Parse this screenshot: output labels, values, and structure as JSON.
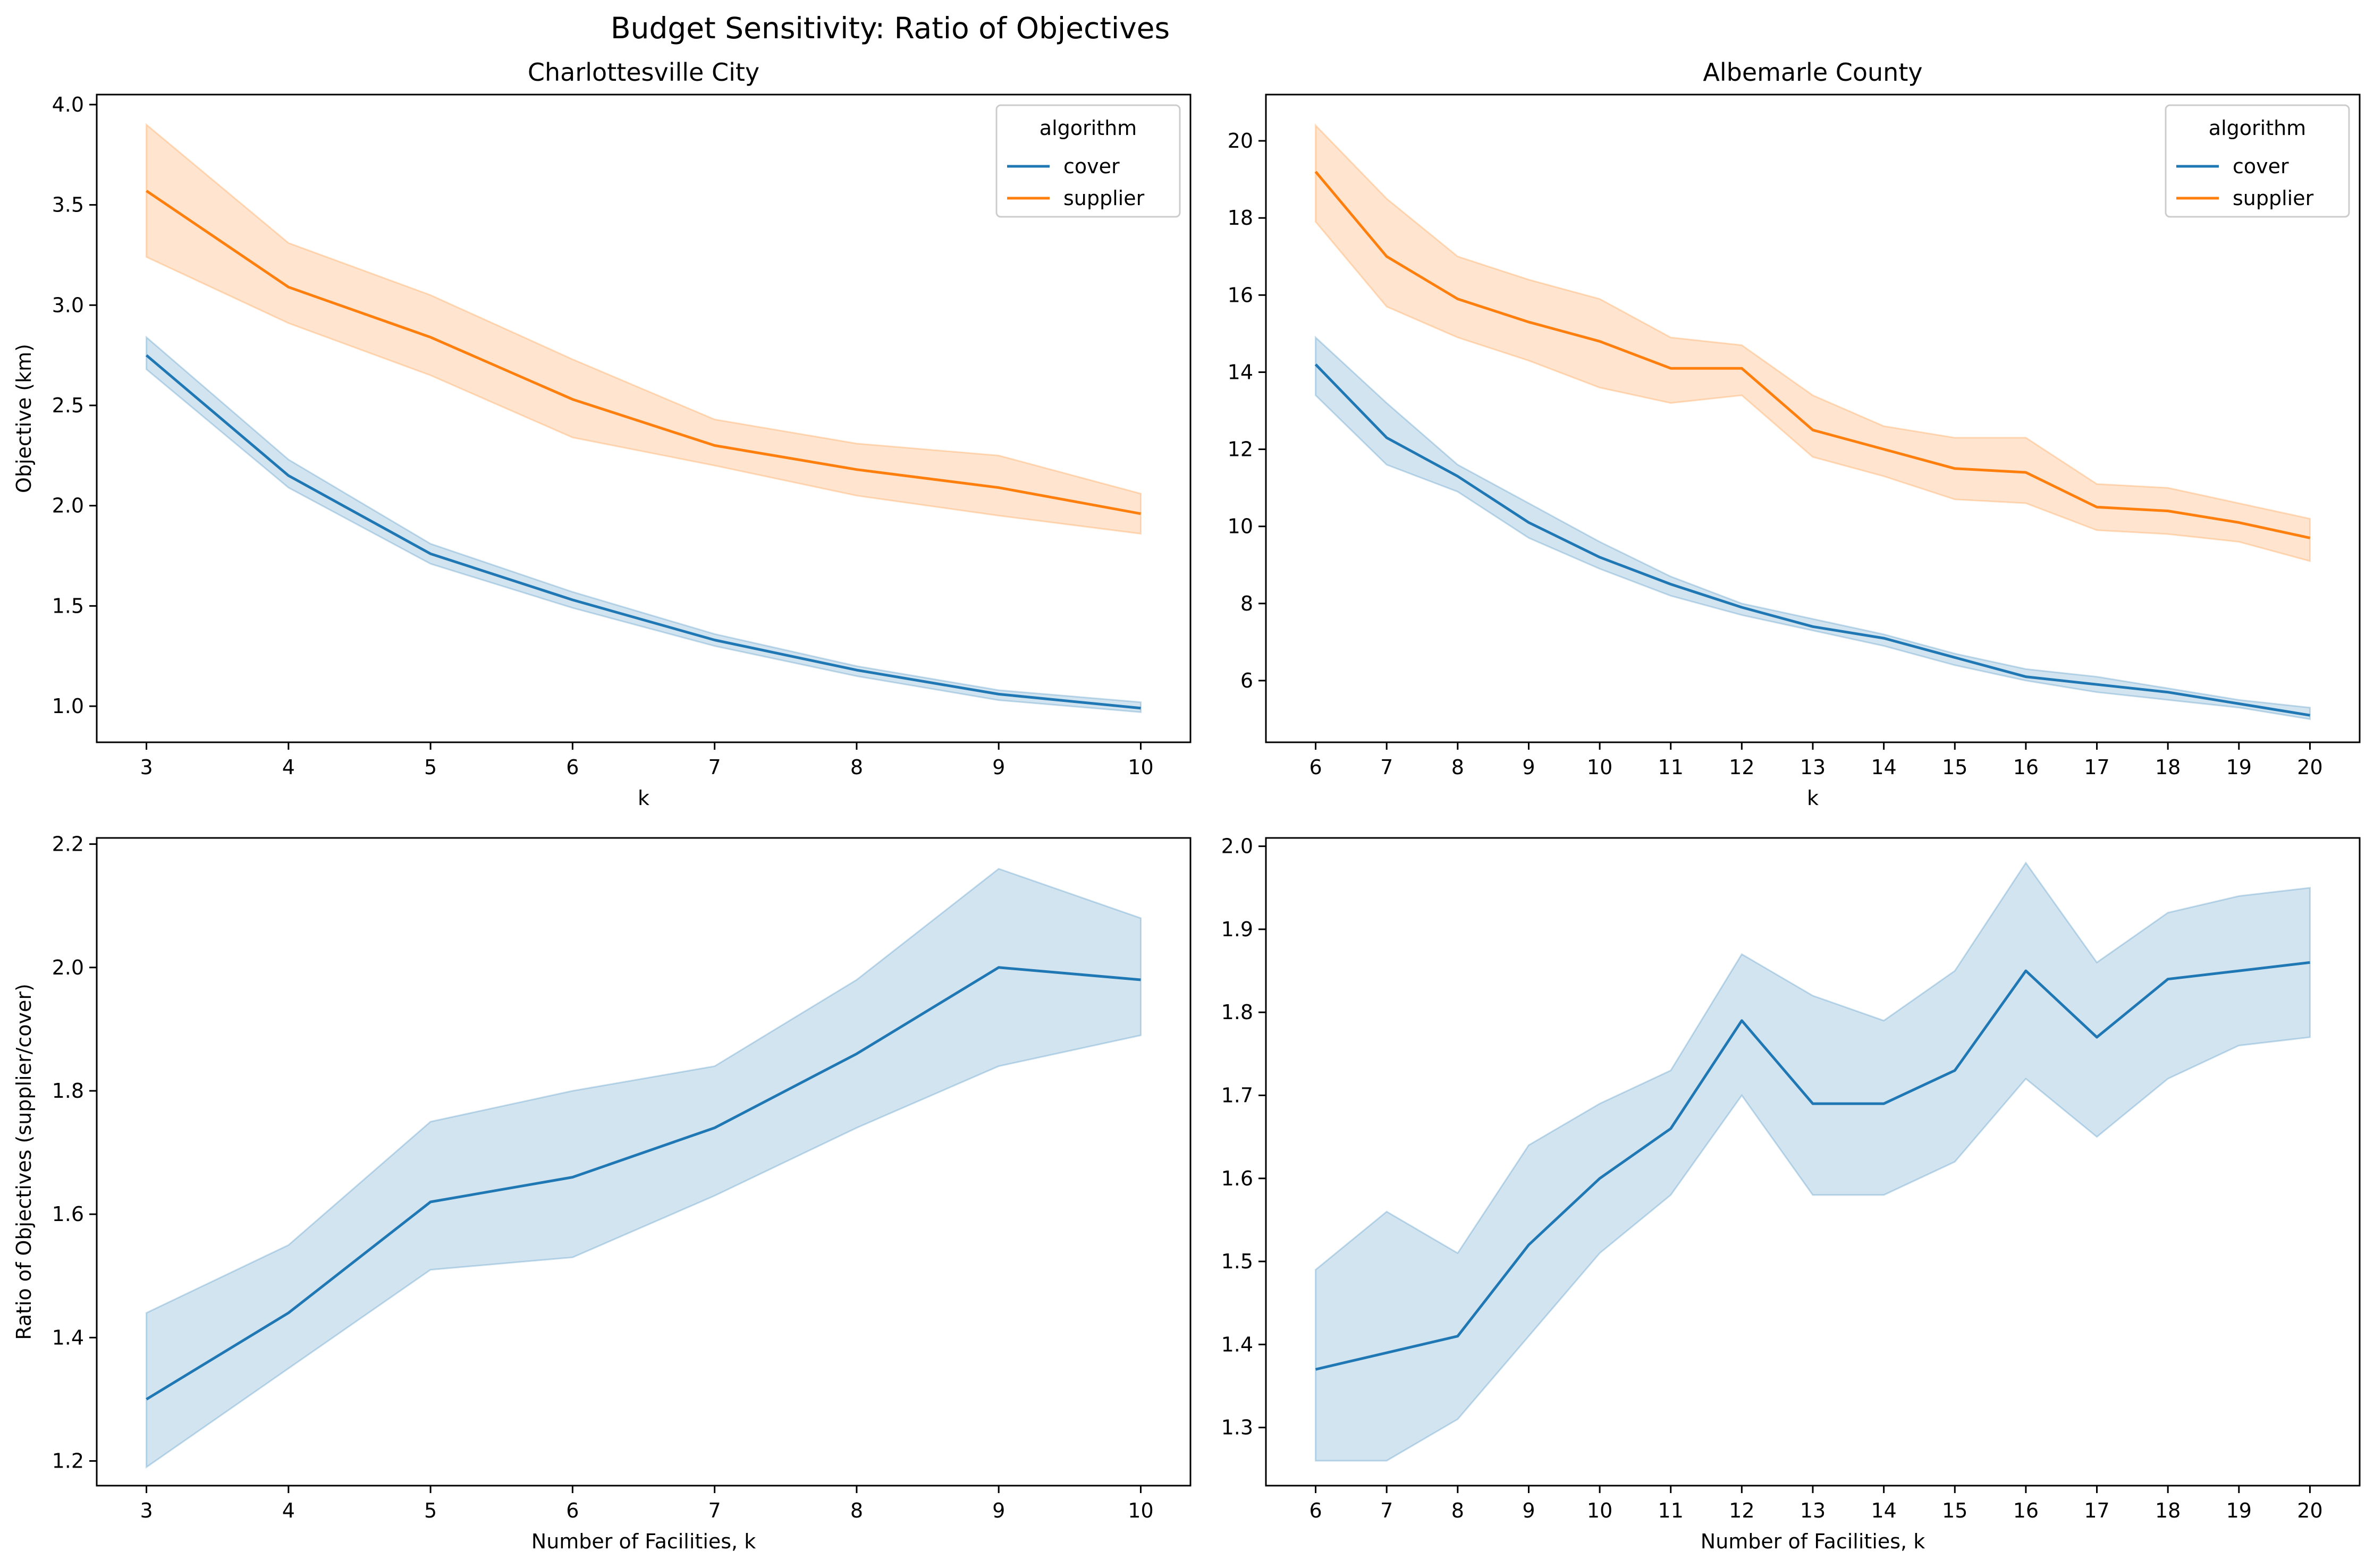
{
  "figure": {
    "suptitle": "Budget Sensitivity: Ratio of Objectives"
  },
  "colors": {
    "cover": "#1f77b4",
    "supplier": "#ff7f0e"
  },
  "chart_data": [
    {
      "id": "cville-objective",
      "type": "line",
      "title": "Charlottesville City",
      "xlabel": "k",
      "ylabel": "Objective (km)",
      "xlim": [
        2.65,
        10.35
      ],
      "ylim": [
        0.82,
        4.05
      ],
      "xticks": [
        3,
        4,
        5,
        6,
        7,
        8,
        9,
        10
      ],
      "yticks": [
        1.0,
        1.5,
        2.0,
        2.5,
        3.0,
        3.5,
        4.0
      ],
      "ytick_labels": [
        "1.0",
        "1.5",
        "2.0",
        "2.5",
        "3.0",
        "3.5",
        "4.0"
      ],
      "grid": false,
      "legend": {
        "title": "algorithm",
        "position": "upper-right",
        "entries": [
          "cover",
          "supplier"
        ]
      },
      "x": [
        3,
        4,
        5,
        6,
        7,
        8,
        9,
        10
      ],
      "series": [
        {
          "name": "cover",
          "color": "#1f77b4",
          "values": [
            2.75,
            2.15,
            1.76,
            1.53,
            1.33,
            1.18,
            1.06,
            0.99
          ],
          "lower": [
            2.68,
            2.09,
            1.71,
            1.49,
            1.3,
            1.15,
            1.03,
            0.97
          ],
          "upper": [
            2.84,
            2.23,
            1.81,
            1.57,
            1.36,
            1.2,
            1.08,
            1.02
          ]
        },
        {
          "name": "supplier",
          "color": "#ff7f0e",
          "values": [
            3.57,
            3.09,
            2.84,
            2.53,
            2.3,
            2.18,
            2.09,
            1.96
          ],
          "lower": [
            3.24,
            2.91,
            2.65,
            2.34,
            2.2,
            2.05,
            1.95,
            1.86
          ],
          "upper": [
            3.9,
            3.31,
            3.05,
            2.73,
            2.43,
            2.31,
            2.25,
            2.06
          ]
        }
      ]
    },
    {
      "id": "albemarle-objective",
      "type": "line",
      "title": "Albemarle County",
      "xlabel": "k",
      "ylabel": "",
      "xlim": [
        5.3,
        20.7
      ],
      "ylim": [
        4.4,
        21.2
      ],
      "xticks": [
        6,
        7,
        8,
        9,
        10,
        11,
        12,
        13,
        14,
        15,
        16,
        17,
        18,
        19,
        20
      ],
      "yticks": [
        6,
        8,
        10,
        12,
        14,
        16,
        18,
        20
      ],
      "ytick_labels": [
        "6",
        "8",
        "10",
        "12",
        "14",
        "16",
        "18",
        "20"
      ],
      "grid": false,
      "legend": {
        "title": "algorithm",
        "position": "upper-right",
        "entries": [
          "cover",
          "supplier"
        ]
      },
      "x": [
        6,
        7,
        8,
        9,
        10,
        11,
        12,
        13,
        14,
        15,
        16,
        17,
        18,
        19,
        20
      ],
      "series": [
        {
          "name": "cover",
          "color": "#1f77b4",
          "values": [
            14.2,
            12.3,
            11.3,
            10.1,
            9.2,
            8.5,
            7.9,
            7.4,
            7.1,
            6.6,
            6.1,
            5.9,
            5.7,
            5.4,
            5.1
          ],
          "lower": [
            13.4,
            11.6,
            10.9,
            9.7,
            8.9,
            8.2,
            7.7,
            7.3,
            6.9,
            6.4,
            6.0,
            5.7,
            5.5,
            5.3,
            5.0
          ],
          "upper": [
            14.9,
            13.2,
            11.6,
            10.6,
            9.6,
            8.7,
            8.0,
            7.6,
            7.2,
            6.7,
            6.3,
            6.1,
            5.8,
            5.5,
            5.3
          ]
        },
        {
          "name": "supplier",
          "color": "#ff7f0e",
          "values": [
            19.2,
            17.0,
            15.9,
            15.3,
            14.8,
            14.1,
            14.1,
            12.5,
            12.0,
            11.5,
            11.4,
            10.5,
            10.4,
            10.1,
            9.7
          ],
          "lower": [
            17.9,
            15.7,
            14.9,
            14.3,
            13.6,
            13.2,
            13.4,
            11.8,
            11.3,
            10.7,
            10.6,
            9.9,
            9.8,
            9.6,
            9.1
          ],
          "upper": [
            20.4,
            18.5,
            17.0,
            16.4,
            15.9,
            14.9,
            14.7,
            13.4,
            12.6,
            12.3,
            12.3,
            11.1,
            11.0,
            10.6,
            10.2
          ]
        }
      ]
    },
    {
      "id": "cville-ratio",
      "type": "line",
      "title": "",
      "xlabel": "Number of Facilities, k",
      "ylabel": "Ratio of Objectives (supplier/cover)",
      "xlim": [
        2.65,
        10.35
      ],
      "ylim": [
        1.16,
        2.21
      ],
      "xticks": [
        3,
        4,
        5,
        6,
        7,
        8,
        9,
        10
      ],
      "yticks": [
        1.2,
        1.4,
        1.6,
        1.8,
        2.0,
        2.2
      ],
      "ytick_labels": [
        "1.2",
        "1.4",
        "1.6",
        "1.8",
        "2.0",
        "2.2"
      ],
      "grid": false,
      "x": [
        3,
        4,
        5,
        6,
        7,
        8,
        9,
        10
      ],
      "series": [
        {
          "color": "#1f77b4",
          "values": [
            1.3,
            1.44,
            1.62,
            1.66,
            1.74,
            1.86,
            2.0,
            1.98
          ],
          "lower": [
            1.19,
            1.35,
            1.51,
            1.53,
            1.63,
            1.74,
            1.84,
            1.89
          ],
          "upper": [
            1.44,
            1.55,
            1.75,
            1.8,
            1.84,
            1.98,
            2.16,
            2.08
          ]
        }
      ]
    },
    {
      "id": "albemarle-ratio",
      "type": "line",
      "title": "",
      "xlabel": "Number of Facilities, k",
      "ylabel": "",
      "xlim": [
        5.3,
        20.7
      ],
      "ylim": [
        1.23,
        2.01
      ],
      "xticks": [
        6,
        7,
        8,
        9,
        10,
        11,
        12,
        13,
        14,
        15,
        16,
        17,
        18,
        19,
        20
      ],
      "yticks": [
        1.3,
        1.4,
        1.5,
        1.6,
        1.7,
        1.8,
        1.9,
        2.0
      ],
      "ytick_labels": [
        "1.3",
        "1.4",
        "1.5",
        "1.6",
        "1.7",
        "1.8",
        "1.9",
        "2.0"
      ],
      "grid": false,
      "x": [
        6,
        7,
        8,
        9,
        10,
        11,
        12,
        13,
        14,
        15,
        16,
        17,
        18,
        19,
        20
      ],
      "series": [
        {
          "color": "#1f77b4",
          "values": [
            1.37,
            1.39,
            1.41,
            1.52,
            1.6,
            1.66,
            1.79,
            1.69,
            1.69,
            1.73,
            1.85,
            1.77,
            1.84,
            1.85,
            1.86
          ],
          "lower": [
            1.26,
            1.26,
            1.31,
            1.41,
            1.51,
            1.58,
            1.7,
            1.58,
            1.58,
            1.62,
            1.72,
            1.65,
            1.72,
            1.76,
            1.77
          ],
          "upper": [
            1.49,
            1.56,
            1.51,
            1.64,
            1.69,
            1.73,
            1.87,
            1.82,
            1.79,
            1.85,
            1.98,
            1.86,
            1.92,
            1.94,
            1.95
          ]
        }
      ]
    }
  ]
}
